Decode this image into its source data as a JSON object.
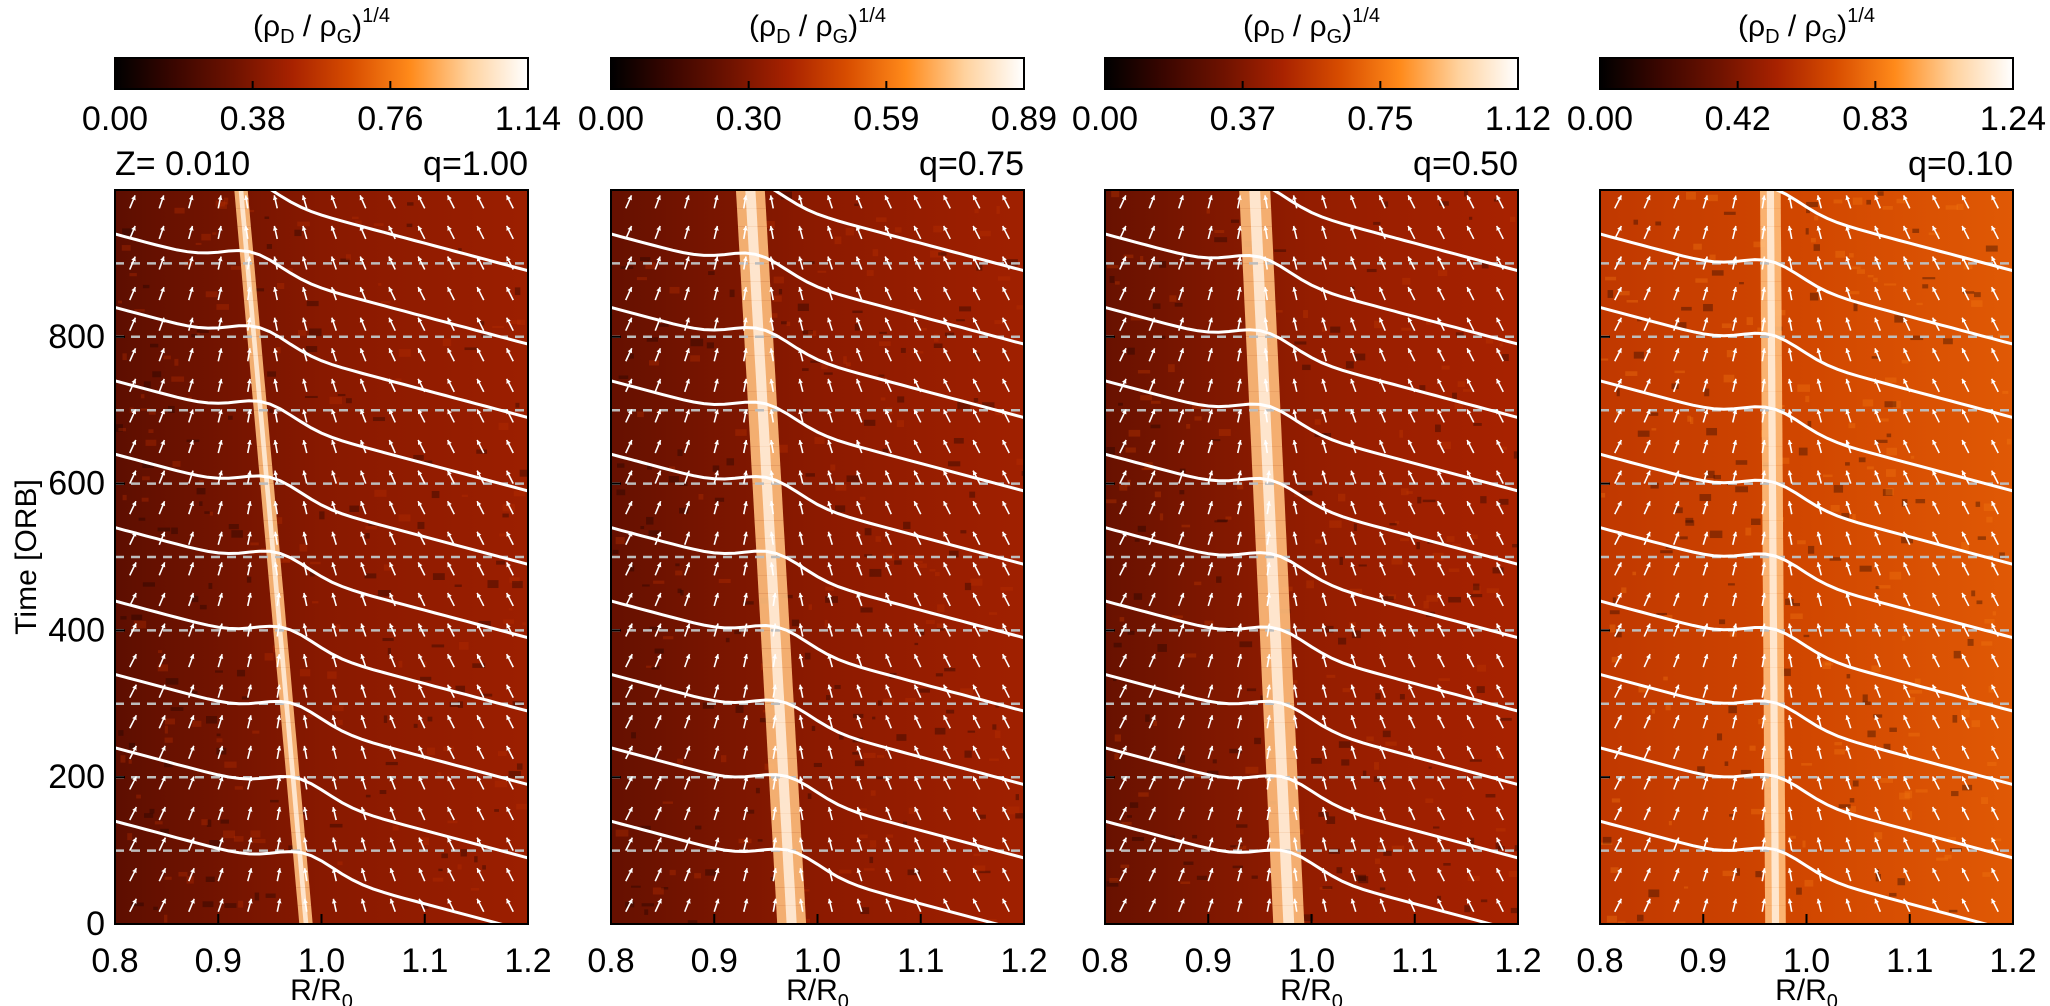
{
  "chart_data": {
    "type": "heatmap",
    "shared": {
      "ylabel": "Time [ORB]",
      "xlabel": {
        "base": "R/R",
        "sub": "0"
      },
      "x_range": [
        0.8,
        1.2
      ],
      "y_range": [
        0,
        1000
      ],
      "x_ticks": [
        "0.8",
        "0.9",
        "1.0",
        "1.1",
        "1.2"
      ],
      "y_ticks": [
        {
          "value": 0,
          "label": "0"
        },
        {
          "value": 200,
          "label": "200"
        },
        {
          "value": 400,
          "label": "400"
        },
        {
          "value": 600,
          "label": "600"
        },
        {
          "value": 800,
          "label": "800"
        }
      ],
      "dashed_times": [
        100,
        200,
        300,
        400,
        500,
        600,
        700,
        800,
        900
      ],
      "colorbar_title": {
        "rho": "ρ",
        "D": "D",
        "slash": " / ",
        "G": "G",
        "exponent": "1/4"
      },
      "colormap": [
        "#000000",
        "#3a0600",
        "#6e1200",
        "#a82200",
        "#d84d00",
        "#ff8a1a",
        "#ffd29e",
        "#ffffff"
      ]
    },
    "panels": [
      {
        "name": "q100",
        "label": "q=1.00",
        "metallicity": "Z= 0.010",
        "colorbar_ticks": [
          "0.00",
          "0.38",
          "0.76",
          "1.14"
        ],
        "ring": {
          "r_start": 0.985,
          "r_end": 0.922,
          "width": 0.013
        },
        "background": 0.35,
        "inner_bg": 0.24
      },
      {
        "name": "q075",
        "label": "q=0.75",
        "colorbar_ticks": [
          "0.00",
          "0.30",
          "0.59",
          "0.89"
        ],
        "ring": {
          "r_start": 0.975,
          "r_end": 0.935,
          "width": 0.028
        },
        "background": 0.36,
        "inner_bg": 0.26
      },
      {
        "name": "q050",
        "label": "q=0.50",
        "colorbar_ticks": [
          "0.00",
          "0.37",
          "0.75",
          "1.12"
        ],
        "ring": {
          "r_start": 0.978,
          "r_end": 0.945,
          "width": 0.03
        },
        "background": 0.38,
        "inner_bg": 0.27
      },
      {
        "name": "q010",
        "label": "q=0.10",
        "colorbar_ticks": [
          "0.00",
          "0.42",
          "0.83",
          "1.24"
        ],
        "ring": {
          "r_start": 0.97,
          "r_end": 0.965,
          "width": 0.02
        },
        "background": 0.55,
        "inner_bg": 0.5
      }
    ]
  }
}
